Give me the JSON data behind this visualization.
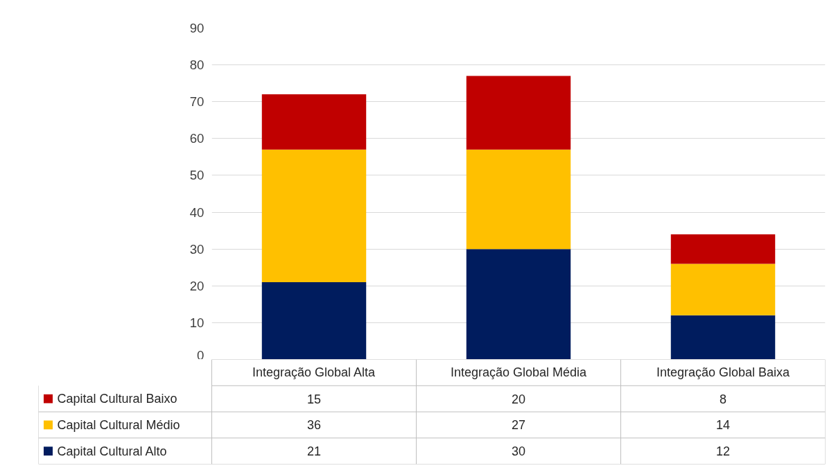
{
  "chart_data": {
    "type": "bar",
    "stacked": true,
    "categories": [
      "Integração Global Alta",
      "Integração Global Média",
      "Integração Global Baixa"
    ],
    "series": [
      {
        "name": "Capital Cultural Alto",
        "color": "#001c5e",
        "values": [
          21,
          30,
          12
        ]
      },
      {
        "name": "Capital Cultural Médio",
        "color": "#ffc000",
        "values": [
          36,
          27,
          14
        ]
      },
      {
        "name": "Capital Cultural Baixo",
        "color": "#c00000",
        "values": [
          15,
          20,
          8
        ]
      }
    ],
    "ylim": [
      0,
      90
    ],
    "yticks": [
      0,
      10,
      20,
      30,
      40,
      50,
      60,
      70,
      80,
      90
    ],
    "grid": "y",
    "data_labels": true,
    "legend": "bottom left"
  }
}
